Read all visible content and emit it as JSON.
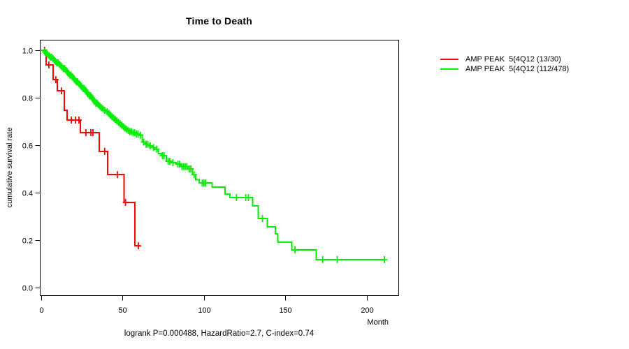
{
  "title": "Time to Death",
  "axes": {
    "xlabel": "Month",
    "ylabel": "cumulative survival rate"
  },
  "footer": {
    "stats": "logrank P=0.000488, HazardRatio=2.7, C-index=0.74"
  },
  "legend": {
    "items": [
      {
        "label": "AMP PEAK  5(4Q12 (13/30)",
        "color": "#ff0000"
      },
      {
        "label": "AMP PEAK  5(4Q12 (112/478)",
        "color": "#00ee00"
      }
    ]
  },
  "chart_data": {
    "type": "line",
    "subtype": "kaplan-meier-step",
    "title": "Time to Death",
    "xlabel": "Month",
    "ylabel": "cumulative survival rate",
    "xlim": [
      0,
      220
    ],
    "ylim": [
      0.0,
      1.0
    ],
    "xticks": [
      0,
      50,
      100,
      150,
      200
    ],
    "yticks": [
      1.0,
      0.8,
      0.6,
      0.4,
      0.2,
      0.0
    ],
    "grid": false,
    "legend_position": "right-outside",
    "series": [
      {
        "name": "AMP PEAK  5(4Q12 (13/30)",
        "color": "#ff0000",
        "events_total": "13/30",
        "step_points": [
          [
            0,
            1.0
          ],
          [
            3,
            0.938
          ],
          [
            7.3,
            0.876
          ],
          [
            9.9,
            0.829
          ],
          [
            14.2,
            0.747
          ],
          [
            15.9,
            0.706
          ],
          [
            24,
            0.653
          ],
          [
            35.6,
            0.574
          ],
          [
            40.8,
            0.476
          ],
          [
            51,
            0.359
          ],
          [
            57.5,
            0.176
          ],
          [
            60.5,
            0.176
          ]
        ],
        "censor_times": [
          2,
          4.7,
          9,
          12.4,
          18.5,
          21,
          23.2,
          27.5,
          30.5,
          31.8,
          39,
          46.8,
          51.8,
          59.7
        ]
      },
      {
        "name": "AMP PEAK  5(4Q12 (112/478)",
        "color": "#00ee00",
        "events_total": "112/478",
        "step_points": [
          [
            0,
            1.0
          ],
          [
            1.5,
            0.993
          ],
          [
            2.5,
            0.988
          ],
          [
            3.5,
            0.982
          ],
          [
            4.5,
            0.977
          ],
          [
            5.5,
            0.971
          ],
          [
            6.5,
            0.965
          ],
          [
            7.5,
            0.959
          ],
          [
            8.5,
            0.953
          ],
          [
            9.5,
            0.947
          ],
          [
            10.5,
            0.941
          ],
          [
            11.5,
            0.935
          ],
          [
            12.5,
            0.929
          ],
          [
            13.5,
            0.923
          ],
          [
            14.5,
            0.916
          ],
          [
            15.5,
            0.909
          ],
          [
            16.5,
            0.902
          ],
          [
            17.5,
            0.895
          ],
          [
            18.5,
            0.888
          ],
          [
            19.5,
            0.881
          ],
          [
            20.5,
            0.874
          ],
          [
            21.5,
            0.867
          ],
          [
            22.5,
            0.86
          ],
          [
            23.5,
            0.853
          ],
          [
            24.5,
            0.846
          ],
          [
            25.5,
            0.839
          ],
          [
            26.5,
            0.832
          ],
          [
            27.5,
            0.824
          ],
          [
            28.5,
            0.816
          ],
          [
            29.5,
            0.808
          ],
          [
            30.5,
            0.8
          ],
          [
            31.5,
            0.792
          ],
          [
            32.5,
            0.784
          ],
          [
            33.5,
            0.777
          ],
          [
            34.5,
            0.77
          ],
          [
            35.5,
            0.764
          ],
          [
            36.5,
            0.758
          ],
          [
            37.5,
            0.752
          ],
          [
            38.5,
            0.747
          ],
          [
            40,
            0.741
          ],
          [
            41,
            0.734
          ],
          [
            42,
            0.727
          ],
          [
            43,
            0.72
          ],
          [
            44,
            0.714
          ],
          [
            45,
            0.708
          ],
          [
            46,
            0.702
          ],
          [
            47,
            0.696
          ],
          [
            48,
            0.69
          ],
          [
            49,
            0.684
          ],
          [
            50,
            0.678
          ],
          [
            51,
            0.672
          ],
          [
            52,
            0.667
          ],
          [
            53,
            0.662
          ],
          [
            54.5,
            0.657
          ],
          [
            56,
            0.652
          ],
          [
            58,
            0.647
          ],
          [
            60,
            0.642
          ],
          [
            62,
            0.613
          ],
          [
            64,
            0.604
          ],
          [
            66,
            0.597
          ],
          [
            68,
            0.59
          ],
          [
            70,
            0.583
          ],
          [
            72,
            0.565
          ],
          [
            74,
            0.556
          ],
          [
            77,
            0.532
          ],
          [
            80,
            0.526
          ],
          [
            83,
            0.52
          ],
          [
            86,
            0.51
          ],
          [
            90,
            0.5
          ],
          [
            93,
            0.476
          ],
          [
            95,
            0.455
          ],
          [
            97,
            0.441
          ],
          [
            105,
            0.424
          ],
          [
            113,
            0.394
          ],
          [
            116,
            0.379
          ],
          [
            130,
            0.344
          ],
          [
            133.5,
            0.291
          ],
          [
            139,
            0.256
          ],
          [
            144,
            0.226
          ],
          [
            145.5,
            0.191
          ],
          [
            154,
            0.159
          ],
          [
            169,
            0.118
          ],
          [
            211,
            0.118
          ]
        ],
        "censor_times": [
          2.2,
          3.1,
          4,
          4.8,
          5.6,
          6.4,
          7.2,
          8,
          8.8,
          9.6,
          10.4,
          11.2,
          12,
          12.8,
          13.6,
          14.4,
          15.2,
          16,
          16.8,
          17.6,
          18.4,
          19.2,
          20,
          20.8,
          21.6,
          22.4,
          23.2,
          24,
          24.8,
          25.6,
          26.4,
          27.2,
          28,
          28.8,
          29.6,
          30.4,
          31.2,
          32,
          32.8,
          33.6,
          34.4,
          35.2,
          36,
          37,
          38,
          39,
          40.5,
          41.5,
          42.5,
          43.5,
          44.5,
          45.5,
          46.5,
          47.5,
          48.5,
          49.5,
          50.5,
          51.5,
          52.5,
          53.5,
          54.5,
          55.5,
          56.5,
          57.5,
          58.5,
          59.5,
          61,
          63,
          64.5,
          65.5,
          67,
          69,
          71,
          74.5,
          75.5,
          78,
          79,
          81,
          84,
          85,
          86.5,
          87.5,
          88.5,
          89.5,
          91,
          92,
          94,
          99,
          100,
          101,
          120,
          125.7,
          127.4,
          136,
          156,
          173,
          182,
          211
        ]
      }
    ]
  }
}
